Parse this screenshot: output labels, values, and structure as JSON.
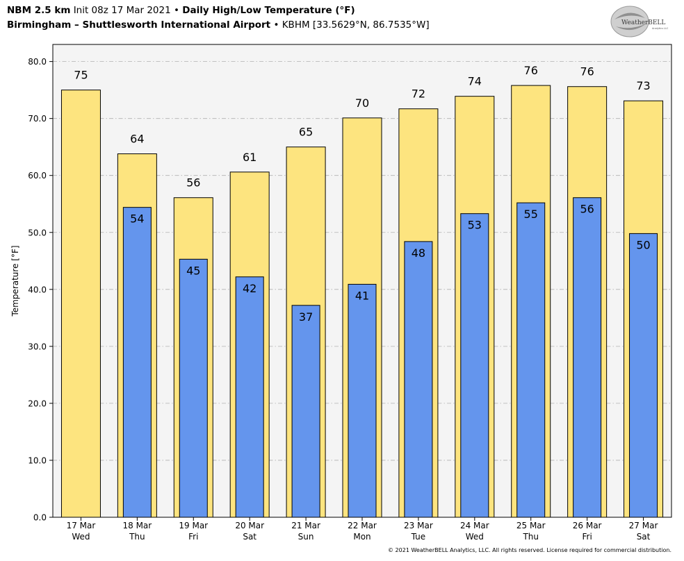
{
  "header": {
    "model": "NBM 2.5 km",
    "init": "Init 08z 17 Mar 2021",
    "sep": "•",
    "title": "Daily High/Low Temperature (°F)",
    "station_name": "Birmingham – Shuttlesworth International Airport",
    "station_id": "KBHM [33.5629°N, 86.7535°W]"
  },
  "logo": {
    "text": "WeatherBELL",
    "sub": "Analytics LLC"
  },
  "copyright": "© 2021 WeatherBELL Analytics, LLC. All rights reserved. License required for commercial distribution.",
  "colors": {
    "high_fill": "#fde47f",
    "low_fill": "#6495ed",
    "plot_bg": "#f4f4f4",
    "grid": "#b0b0b0"
  },
  "chart_data": {
    "type": "bar",
    "ylabel": "Temperature [°F]",
    "ylim": [
      0,
      83
    ],
    "yticks": [
      "0.0",
      "10.0",
      "20.0",
      "30.0",
      "40.0",
      "50.0",
      "60.0",
      "70.0",
      "80.0"
    ],
    "grid": true,
    "categories": [
      "17 Mar",
      "18 Mar",
      "19 Mar",
      "20 Mar",
      "21 Mar",
      "22 Mar",
      "23 Mar",
      "24 Mar",
      "25 Mar",
      "26 Mar",
      "27 Mar"
    ],
    "weekdays": [
      "Wed",
      "Thu",
      "Fri",
      "Sat",
      "Sun",
      "Mon",
      "Tue",
      "Wed",
      "Thu",
      "Fri",
      "Sat"
    ],
    "series": [
      {
        "values": [
          75,
          63.8,
          56.1,
          60.6,
          65,
          70.1,
          71.7,
          73.9,
          75.8,
          75.6,
          73.1
        ],
        "labels": [
          "75",
          "64",
          "56",
          "61",
          "65",
          "70",
          "72",
          "74",
          "76",
          "76",
          "73"
        ]
      },
      {
        "values": [
          null,
          54.4,
          45.3,
          42.2,
          37.2,
          40.9,
          48.4,
          53.3,
          55.2,
          56.1,
          49.8
        ],
        "labels": [
          "",
          "54",
          "45",
          "42",
          "37",
          "41",
          "48",
          "53",
          "55",
          "56",
          "50"
        ]
      }
    ]
  }
}
